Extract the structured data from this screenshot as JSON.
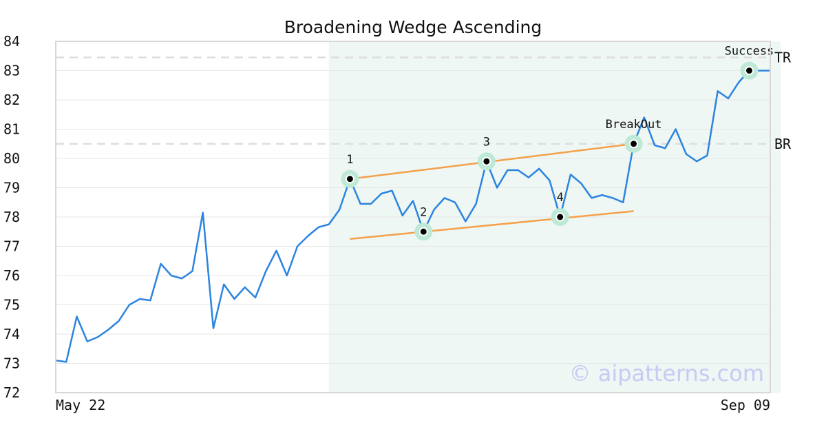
{
  "chart_data": {
    "type": "line",
    "title": "Broadening Wedge Ascending",
    "xlabel": "",
    "ylabel": "",
    "x_tick_labels": {
      "start": "May 22",
      "end": "Sep 09"
    },
    "ylim": [
      72,
      84
    ],
    "y_ticks": [
      "72",
      "73",
      "74",
      "75",
      "76",
      "77",
      "78",
      "79",
      "80",
      "81",
      "82",
      "83",
      "84"
    ],
    "grid": true,
    "watermark": "© aipatterns.com",
    "series": [
      {
        "color": "#2b84e0",
        "values": [
          73.1,
          73.05,
          74.6,
          73.75,
          73.9,
          74.15,
          74.45,
          75.0,
          75.2,
          75.15,
          76.4,
          76.0,
          75.9,
          76.15,
          78.15,
          74.2,
          75.7,
          75.2,
          75.6,
          75.25,
          76.15,
          76.85,
          76.0,
          77.0,
          77.35,
          77.65,
          77.75,
          78.25,
          79.3,
          78.45,
          78.45,
          78.8,
          78.9,
          78.05,
          78.55,
          77.5,
          78.25,
          78.65,
          78.5,
          77.85,
          78.45,
          79.9,
          79.0,
          79.6,
          79.6,
          79.35,
          79.65,
          79.25,
          78.0,
          79.45,
          79.15,
          78.65,
          78.75,
          78.65,
          78.5,
          80.5,
          81.4,
          80.45,
          80.35,
          81.0,
          80.15,
          79.9,
          80.1,
          82.3,
          82.05,
          82.6,
          83.0,
          83.0,
          83.0
        ]
      }
    ],
    "pattern_zone": {
      "start_index": 26,
      "end_index": 69,
      "color": "#eef7f3"
    },
    "levels": [
      {
        "name": "TR",
        "value": 83.45
      },
      {
        "name": "BR",
        "value": 80.5
      }
    ],
    "trendlines": [
      {
        "color": "#f5a04a",
        "from": {
          "index": 28,
          "value": 79.3
        },
        "to": {
          "index": 55,
          "value": 80.5
        }
      },
      {
        "color": "#f5a04a",
        "from": {
          "index": 28,
          "value": 77.25
        },
        "to": {
          "index": 55,
          "value": 78.2
        }
      }
    ],
    "markers": [
      {
        "label": "1",
        "index": 28,
        "value": 79.3,
        "label_pos": "above"
      },
      {
        "label": "2",
        "index": 35,
        "value": 77.5,
        "label_pos": "above"
      },
      {
        "label": "3",
        "index": 41,
        "value": 79.9,
        "label_pos": "above"
      },
      {
        "label": "4",
        "index": 48,
        "value": 78.0,
        "label_pos": "above"
      },
      {
        "label": "BreakOut",
        "index": 55,
        "value": 80.5,
        "label_pos": "above"
      },
      {
        "label": "Success",
        "index": 66,
        "value": 83.0,
        "label_pos": "above"
      }
    ],
    "colors": {
      "marker_halo": "#bde9d6",
      "level_line": "#dddddd",
      "grid": "#e6e6e6",
      "frame": "#d8d8d8"
    }
  }
}
